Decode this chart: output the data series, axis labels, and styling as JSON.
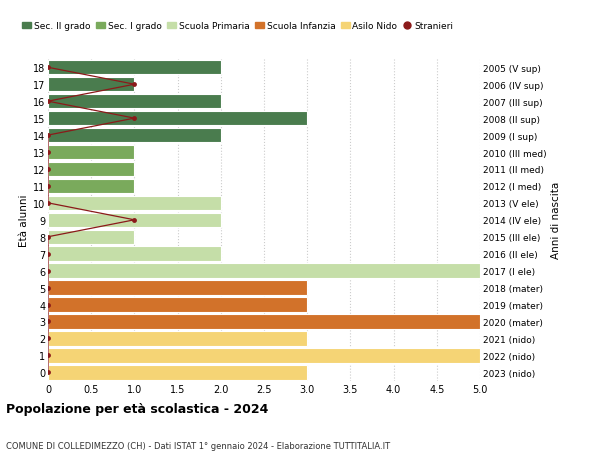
{
  "ages": [
    18,
    17,
    16,
    15,
    14,
    13,
    12,
    11,
    10,
    9,
    8,
    7,
    6,
    5,
    4,
    3,
    2,
    1,
    0
  ],
  "right_labels": [
    "2005 (V sup)",
    "2006 (IV sup)",
    "2007 (III sup)",
    "2008 (II sup)",
    "2009 (I sup)",
    "2010 (III med)",
    "2011 (II med)",
    "2012 (I med)",
    "2013 (V ele)",
    "2014 (IV ele)",
    "2015 (III ele)",
    "2016 (II ele)",
    "2017 (I ele)",
    "2018 (mater)",
    "2019 (mater)",
    "2020 (mater)",
    "2021 (nido)",
    "2022 (nido)",
    "2023 (nido)"
  ],
  "bar_values": [
    2,
    1,
    2,
    3,
    2,
    1,
    1,
    1,
    2,
    2,
    1,
    2,
    5,
    3,
    3,
    5,
    3,
    5,
    3
  ],
  "bar_colors": [
    "#4a7c4e",
    "#4a7c4e",
    "#4a7c4e",
    "#4a7c4e",
    "#4a7c4e",
    "#7aaa5c",
    "#7aaa5c",
    "#7aaa5c",
    "#c5dea8",
    "#c5dea8",
    "#c5dea8",
    "#c5dea8",
    "#c5dea8",
    "#d2722a",
    "#d2722a",
    "#d2722a",
    "#f5d475",
    "#f5d475",
    "#f5d475"
  ],
  "stranieri_values": [
    0,
    1,
    0,
    1,
    0,
    0,
    0,
    0,
    0,
    1,
    0,
    0,
    0,
    0,
    0,
    0,
    0,
    0,
    0
  ],
  "legend_labels": [
    "Sec. II grado",
    "Sec. I grado",
    "Scuola Primaria",
    "Scuola Infanzia",
    "Asilo Nido",
    "Stranieri"
  ],
  "legend_colors": [
    "#4a7c4e",
    "#7aaa5c",
    "#c5dea8",
    "#d2722a",
    "#f5d475",
    "#cc2200"
  ],
  "title": "Popolazione per età scolastica - 2024",
  "subtitle": "COMUNE DI COLLEDIMEZZO (CH) - Dati ISTAT 1° gennaio 2024 - Elaborazione TUTTITALIA.IT",
  "ylabel_left": "Età alunni",
  "ylabel_right": "Anni di nascita",
  "xlim": [
    0,
    5.0
  ],
  "bg_color": "#ffffff",
  "grid_color": "#cccccc",
  "stranieri_color": "#8b1a1a",
  "bar_height": 0.85
}
